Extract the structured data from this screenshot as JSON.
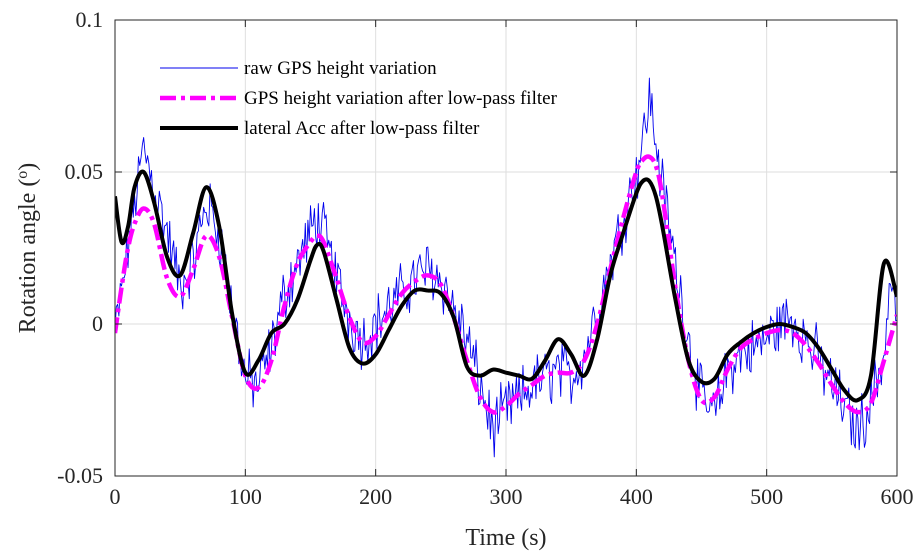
{
  "chart_data": {
    "type": "line",
    "xlabel": "Time (s)",
    "ylabel": "Rotation angle  (",
    "ylabel_unit_sup": "o",
    "ylabel_close": ")",
    "xlim": [
      0,
      600
    ],
    "ylim": [
      -0.05,
      0.1
    ],
    "xticks": [
      0,
      100,
      200,
      300,
      400,
      500,
      600
    ],
    "yticks": [
      -0.05,
      0,
      0.05,
      0.1
    ],
    "xtick_labels": [
      "0",
      "100",
      "200",
      "300",
      "400",
      "500",
      "600"
    ],
    "ytick_labels": [
      "-0.05",
      "0",
      "0.05",
      "0.1"
    ],
    "grid": true,
    "legend_position": "top-left",
    "series": [
      {
        "name": "raw GPS height variation",
        "color": "#0000ee",
        "style": "thin-noisy",
        "x": [
          0,
          5,
          10,
          15,
          22,
          30,
          40,
          50,
          60,
          70,
          80,
          90,
          100,
          110,
          120,
          130,
          140,
          150,
          155,
          160,
          170,
          180,
          190,
          200,
          210,
          220,
          230,
          240,
          250,
          260,
          270,
          280,
          290,
          300,
          310,
          320,
          330,
          340,
          350,
          360,
          370,
          380,
          390,
          400,
          405,
          410,
          415,
          420,
          430,
          440,
          450,
          460,
          470,
          480,
          490,
          500,
          510,
          520,
          530,
          540,
          550,
          560,
          570,
          580,
          590,
          595,
          600
        ],
        "y": [
          -0.003,
          0.01,
          0.025,
          0.04,
          0.058,
          0.045,
          0.03,
          0.012,
          0.02,
          0.04,
          0.03,
          0.005,
          -0.018,
          -0.02,
          -0.008,
          0.01,
          0.02,
          0.03,
          0.035,
          0.03,
          0.015,
          0.002,
          -0.005,
          0.0,
          0.005,
          0.01,
          0.015,
          0.018,
          0.015,
          0.005,
          -0.005,
          -0.02,
          -0.035,
          -0.028,
          -0.025,
          -0.02,
          -0.018,
          -0.015,
          -0.018,
          -0.01,
          0.005,
          0.02,
          0.035,
          0.05,
          0.06,
          0.075,
          0.06,
          0.045,
          0.02,
          -0.005,
          -0.025,
          -0.03,
          -0.015,
          -0.01,
          -0.008,
          -0.005,
          0.0,
          0.002,
          -0.005,
          -0.012,
          -0.02,
          -0.028,
          -0.035,
          -0.025,
          -0.01,
          0.015,
          0.003
        ]
      },
      {
        "name": "GPS height variation after low-pass filter",
        "color": "#ff00ff",
        "style": "dash-dot",
        "x": [
          0,
          5,
          10,
          15,
          22,
          30,
          40,
          50,
          60,
          70,
          80,
          90,
          100,
          110,
          120,
          130,
          140,
          150,
          155,
          160,
          170,
          180,
          190,
          200,
          210,
          220,
          230,
          240,
          250,
          260,
          270,
          280,
          290,
          300,
          310,
          320,
          330,
          340,
          350,
          360,
          370,
          380,
          390,
          400,
          405,
          410,
          415,
          420,
          430,
          440,
          450,
          460,
          470,
          480,
          490,
          500,
          510,
          520,
          530,
          540,
          550,
          560,
          570,
          580,
          590,
          600
        ],
        "y": [
          -0.003,
          0.012,
          0.025,
          0.033,
          0.038,
          0.033,
          0.015,
          0.009,
          0.018,
          0.029,
          0.022,
          0.002,
          -0.017,
          -0.021,
          -0.012,
          0.006,
          0.02,
          0.027,
          0.029,
          0.027,
          0.015,
          0.002,
          -0.006,
          -0.004,
          0.003,
          0.01,
          0.014,
          0.016,
          0.013,
          0.002,
          -0.012,
          -0.024,
          -0.029,
          -0.027,
          -0.023,
          -0.02,
          -0.017,
          -0.016,
          -0.016,
          -0.012,
          0.0,
          0.018,
          0.035,
          0.05,
          0.054,
          0.055,
          0.052,
          0.042,
          0.012,
          -0.012,
          -0.025,
          -0.024,
          -0.015,
          -0.008,
          -0.005,
          -0.003,
          -0.002,
          -0.003,
          -0.007,
          -0.013,
          -0.02,
          -0.026,
          -0.029,
          -0.026,
          -0.012,
          0.003
        ]
      },
      {
        "name": "lateral Acc after low-pass filter",
        "color": "#000000",
        "style": "thick-solid",
        "x": [
          0,
          5,
          10,
          15,
          22,
          30,
          40,
          50,
          60,
          70,
          80,
          90,
          100,
          110,
          120,
          130,
          140,
          150,
          155,
          160,
          170,
          180,
          190,
          200,
          210,
          220,
          230,
          240,
          250,
          260,
          270,
          280,
          290,
          300,
          310,
          320,
          330,
          340,
          350,
          360,
          370,
          380,
          390,
          400,
          405,
          410,
          415,
          420,
          430,
          440,
          450,
          460,
          470,
          480,
          490,
          500,
          510,
          520,
          530,
          540,
          550,
          560,
          570,
          580,
          590,
          600
        ],
        "y": [
          0.042,
          0.027,
          0.032,
          0.045,
          0.05,
          0.04,
          0.022,
          0.016,
          0.03,
          0.045,
          0.032,
          0.003,
          -0.016,
          -0.012,
          -0.003,
          0.0,
          0.008,
          0.021,
          0.026,
          0.024,
          0.008,
          -0.008,
          -0.013,
          -0.01,
          -0.002,
          0.006,
          0.011,
          0.011,
          0.01,
          0.002,
          -0.014,
          -0.017,
          -0.015,
          -0.016,
          -0.017,
          -0.018,
          -0.012,
          -0.005,
          -0.01,
          -0.017,
          -0.005,
          0.016,
          0.03,
          0.043,
          0.047,
          0.047,
          0.042,
          0.032,
          0.008,
          -0.012,
          -0.019,
          -0.018,
          -0.01,
          -0.006,
          -0.003,
          -0.001,
          0.0,
          -0.001,
          -0.003,
          -0.008,
          -0.015,
          -0.022,
          -0.025,
          -0.017,
          0.02,
          0.009
        ]
      }
    ]
  }
}
